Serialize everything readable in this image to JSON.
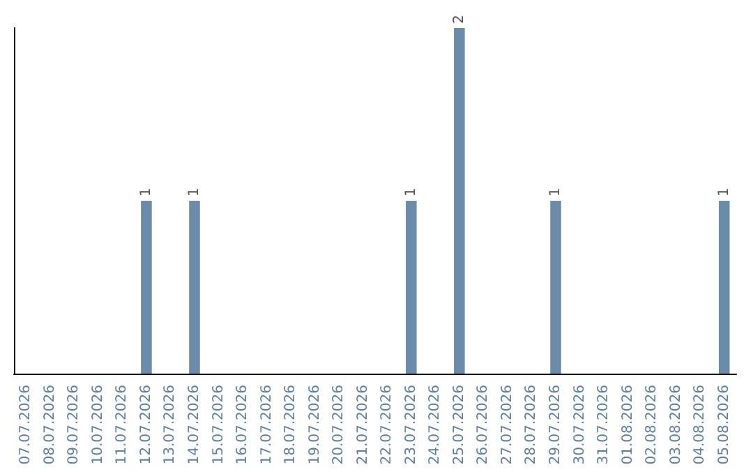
{
  "chart_data": {
    "type": "bar",
    "categories": [
      "07.07.2026",
      "08.07.2026",
      "09.07.2026",
      "10.07.2026",
      "11.07.2026",
      "12.07.2026",
      "13.07.2026",
      "14.07.2026",
      "15.07.2026",
      "16.07.2026",
      "17.07.2026",
      "18.07.2026",
      "19.07.2026",
      "20.07.2026",
      "21.07.2026",
      "22.07.2026",
      "23.07.2026",
      "24.07.2026",
      "25.07.2026",
      "26.07.2026",
      "27.07.2026",
      "28.07.2026",
      "29.07.2026",
      "30.07.2026",
      "31.07.2026",
      "01.08.2026",
      "02.08.2026",
      "03.08.2026",
      "04.08.2026",
      "05.08.2026"
    ],
    "values": [
      0,
      0,
      0,
      0,
      0,
      1,
      0,
      1,
      0,
      0,
      0,
      0,
      0,
      0,
      0,
      0,
      1,
      0,
      2,
      0,
      0,
      0,
      1,
      0,
      0,
      0,
      0,
      0,
      0,
      1
    ],
    "value_labels": [
      null,
      null,
      null,
      null,
      null,
      "1",
      null,
      "1",
      null,
      null,
      null,
      null,
      null,
      null,
      null,
      null,
      "1",
      null,
      "2",
      null,
      null,
      null,
      "1",
      null,
      null,
      null,
      null,
      null,
      null,
      "1"
    ],
    "color": "#6a8caa",
    "tick_labels": "x"
  }
}
